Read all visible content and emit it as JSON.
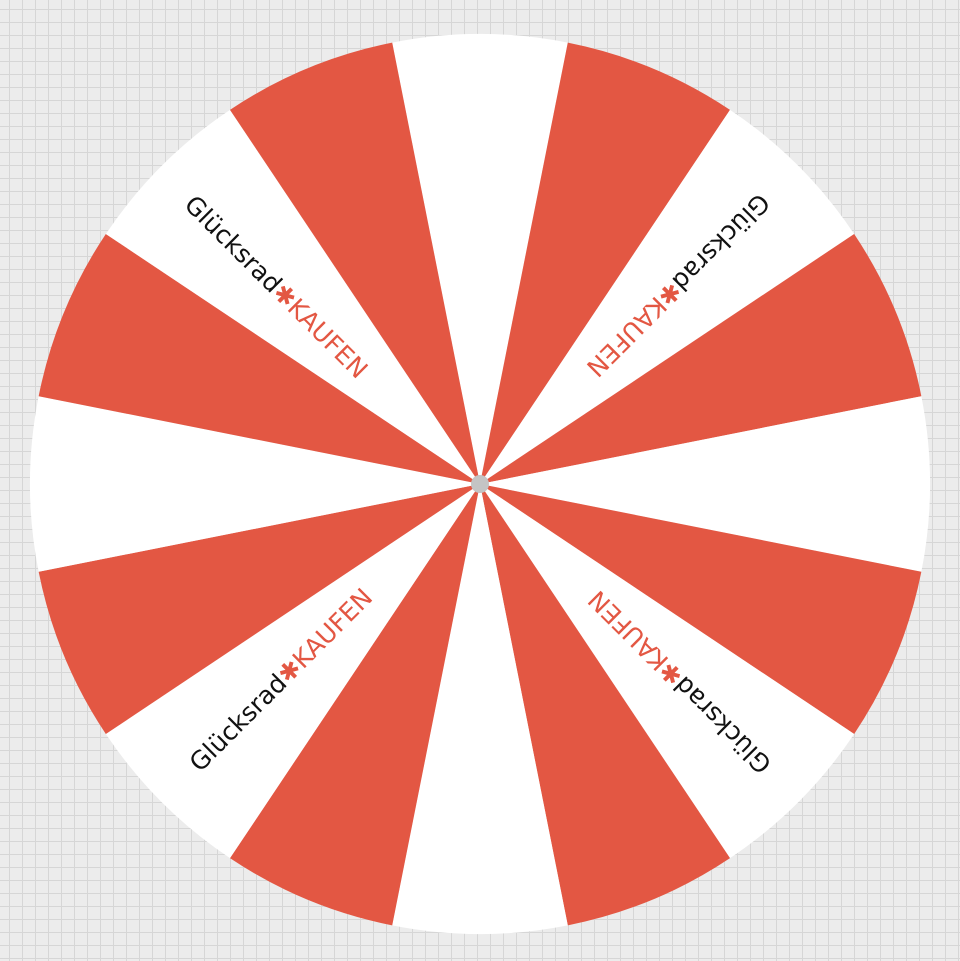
{
  "wheel": {
    "segment_count": 16,
    "segment_colors": [
      "#ffffff",
      "#e35743"
    ],
    "hub_color": "#c4c4c4",
    "brand": {
      "word": "Glücksrad",
      "separator": "✱",
      "accent": "KAUFEN",
      "word_color": "#111111",
      "accent_color": "#e35743"
    }
  }
}
